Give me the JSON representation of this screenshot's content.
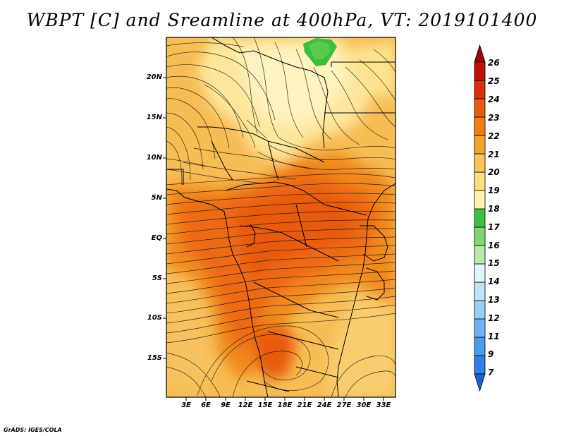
{
  "title": "WBPT [C] and Sreamline at 400hPa, VT: 2019101400",
  "credit": "GrADS: IGES/COLA",
  "map": {
    "lat_ticks": [
      "20N",
      "15N",
      "10N",
      "5N",
      "EQ",
      "5S",
      "10S",
      "15S"
    ],
    "lon_ticks": [
      "3E",
      "6E",
      "9E",
      "12E",
      "15E",
      "18E",
      "21E",
      "24E",
      "27E",
      "30E",
      "33E"
    ]
  },
  "colorbar": {
    "levels": [
      "7",
      "9",
      "11",
      "12",
      "13",
      "14",
      "15",
      "16",
      "17",
      "18",
      "19",
      "20",
      "21",
      "22",
      "23",
      "24",
      "25",
      "26"
    ],
    "colors": [
      "#1f5fd6",
      "#2e7fe8",
      "#4a9af0",
      "#6fb4f5",
      "#98cdf8",
      "#bfe2fb",
      "#e3f5fd",
      "#b7eaa8",
      "#7fd86f",
      "#3fbf3f",
      "#fff3b0",
      "#fddf80",
      "#f9c356",
      "#f5a428",
      "#f07e14",
      "#e85a0c",
      "#d9300a",
      "#c01008",
      "#a00000"
    ]
  }
}
